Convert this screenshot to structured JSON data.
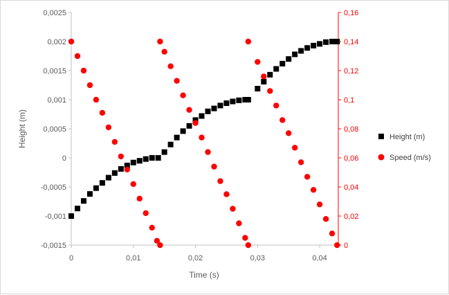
{
  "chart_data": {
    "type": "scatter",
    "xlabel": "Time (s)",
    "ylabel": "Height (m)",
    "y2label": "",
    "xlim": [
      0,
      0.043
    ],
    "ylim": [
      -0.0015,
      0.0025
    ],
    "y2lim": [
      0,
      0.16
    ],
    "x_ticks": [
      "0",
      "0,01",
      "0,02",
      "0,03",
      "0,04"
    ],
    "x_tick_values": [
      0,
      0.01,
      0.02,
      0.03,
      0.04
    ],
    "y_ticks": [
      "-0,0015",
      "-0,001",
      "-0,0005",
      "0",
      "0,0005",
      "0,001",
      "0,0015",
      "0,002",
      "0,0025"
    ],
    "y_tick_values": [
      -0.0015,
      -0.001,
      -0.0005,
      0,
      0.0005,
      0.001,
      0.0015,
      0.002,
      0.0025
    ],
    "y2_ticks": [
      "0",
      "0,02",
      "0,04",
      "0,06",
      "0,08",
      "0,1",
      "0,12",
      "0,14",
      "0,16"
    ],
    "y2_tick_values": [
      0,
      0.02,
      0.04,
      0.06,
      0.08,
      0.1,
      0.12,
      0.14,
      0.16
    ],
    "grid": false,
    "legend_position": "right",
    "series": [
      {
        "name": "Height (m)",
        "marker": "square",
        "color": "#000000",
        "axis": "left",
        "x": [
          0,
          0.001,
          0.002,
          0.003,
          0.004,
          0.005,
          0.006,
          0.007,
          0.008,
          0.009,
          0.01,
          0.011,
          0.012,
          0.013,
          0.014,
          0.015,
          0.016,
          0.017,
          0.018,
          0.019,
          0.02,
          0.021,
          0.022,
          0.023,
          0.024,
          0.025,
          0.026,
          0.027,
          0.028,
          0.0285,
          0.03,
          0.031,
          0.032,
          0.033,
          0.034,
          0.035,
          0.036,
          0.037,
          0.038,
          0.039,
          0.04,
          0.041,
          0.042,
          0.0428
        ],
        "y": [
          -0.001,
          -0.00087,
          -0.00074,
          -0.00062,
          -0.00052,
          -0.00043,
          -0.00034,
          -0.00026,
          -0.00019,
          -0.00013,
          -8e-05,
          -5e-05,
          -2e-05,
          0.0,
          0.0,
          0.0001,
          0.00023,
          0.00035,
          0.00046,
          0.00055,
          0.00065,
          0.00072,
          0.0008,
          0.00085,
          0.0009,
          0.00094,
          0.00097,
          0.00099,
          0.001,
          0.001,
          0.00119,
          0.00131,
          0.00143,
          0.00153,
          0.00162,
          0.0017,
          0.00178,
          0.00184,
          0.00189,
          0.00193,
          0.00196,
          0.00199,
          0.002,
          0.002
        ]
      },
      {
        "name": "Speed (m/s)",
        "marker": "circle",
        "color": "#ff0000",
        "axis": "right",
        "x": [
          0,
          0.001,
          0.002,
          0.003,
          0.004,
          0.005,
          0.006,
          0.007,
          0.008,
          0.009,
          0.01,
          0.011,
          0.012,
          0.013,
          0.0138,
          0.0143,
          0.0143,
          0.015,
          0.016,
          0.017,
          0.018,
          0.019,
          0.02,
          0.021,
          0.022,
          0.023,
          0.024,
          0.025,
          0.026,
          0.027,
          0.028,
          0.0285,
          0.0285,
          0.03,
          0.031,
          0.032,
          0.033,
          0.034,
          0.035,
          0.036,
          0.037,
          0.038,
          0.039,
          0.04,
          0.041,
          0.042,
          0.0428
        ],
        "y": [
          0.14,
          0.13,
          0.12,
          0.11,
          0.1,
          0.091,
          0.081,
          0.071,
          0.061,
          0.052,
          0.042,
          0.032,
          0.022,
          0.012,
          0.003,
          0.0,
          0.14,
          0.133,
          0.123,
          0.113,
          0.103,
          0.093,
          0.084,
          0.074,
          0.064,
          0.054,
          0.044,
          0.035,
          0.025,
          0.015,
          0.005,
          0.0,
          0.14,
          0.126,
          0.116,
          0.106,
          0.096,
          0.086,
          0.077,
          0.067,
          0.057,
          0.047,
          0.038,
          0.028,
          0.018,
          0.008,
          0.0
        ]
      }
    ]
  }
}
